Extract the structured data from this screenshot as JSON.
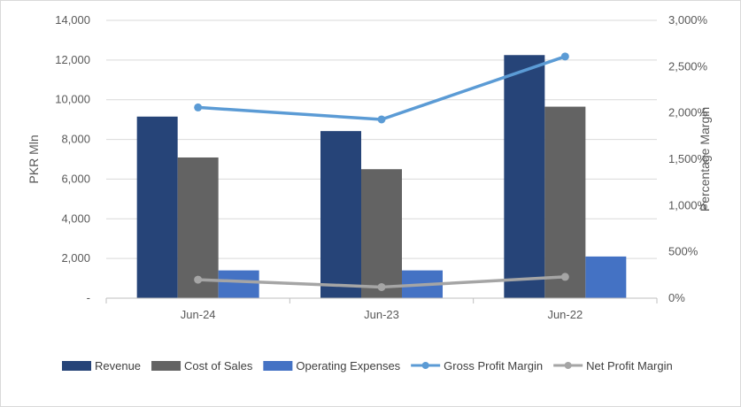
{
  "chart_data": {
    "type": "bar",
    "categories": [
      "Jun-24",
      "Jun-23",
      "Jun-22"
    ],
    "series": [
      {
        "name": "Revenue",
        "kind": "bar",
        "axis": "left",
        "color": "#264478",
        "values": [
          9150,
          8420,
          12250
        ]
      },
      {
        "name": "Cost of Sales",
        "kind": "bar",
        "axis": "left",
        "color": "#636363",
        "values": [
          7090,
          6500,
          9650
        ]
      },
      {
        "name": "Operating Expenses",
        "kind": "bar",
        "axis": "left",
        "color": "#4472c4",
        "values": [
          1400,
          1400,
          2100
        ]
      },
      {
        "name": "Gross Profit Margin",
        "kind": "line",
        "axis": "right",
        "color": "#5b9bd5",
        "values": [
          2060,
          1930,
          2610
        ]
      },
      {
        "name": "Net Profit Margin",
        "kind": "line",
        "axis": "right",
        "color": "#a5a5a5",
        "values": [
          200,
          120,
          230
        ]
      }
    ],
    "ylabel": "PKR Mln",
    "y2label": "Percentage Margin",
    "ylim": [
      0,
      14000
    ],
    "y2lim": [
      0,
      3000
    ],
    "yticks": [
      "-",
      "2,000",
      "4,000",
      "6,000",
      "8,000",
      "10,000",
      "12,000",
      "14,000"
    ],
    "y2ticks": [
      "0%",
      "500%",
      "1,000%",
      "1,500%",
      "2,000%",
      "2,500%",
      "3,000%"
    ],
    "grid": true,
    "legend": "bottom"
  }
}
